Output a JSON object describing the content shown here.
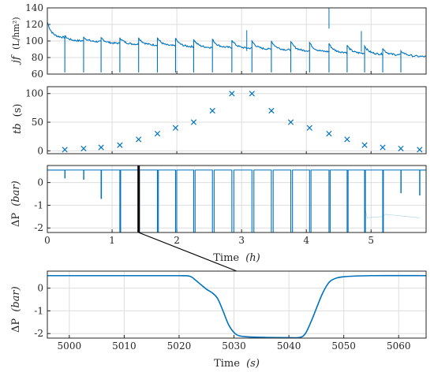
{
  "colors": {
    "series": "#0072bd",
    "axis": "#262626",
    "grid": "#dddddd",
    "zoom_line": "#000000"
  },
  "chart_data": [
    {
      "type": "line",
      "ylabel": "j_f (L/hm²)",
      "ylabel_text": "jf",
      "ylabel_unit": "(L/hm²)",
      "xlim": [
        0,
        5.85
      ],
      "ylim": [
        60,
        140
      ],
      "xticks": [
        0,
        1,
        2,
        3,
        4,
        5
      ],
      "yticks": [
        60,
        80,
        100,
        120,
        140
      ],
      "ytick_labels": [
        "60",
        "80",
        "100",
        "120",
        "140"
      ],
      "grid": true,
      "series": [
        {
          "start": [
            0.0,
            123
          ],
          "segments": [
            {
              "x0": 0.0,
              "x1": 0.27,
              "y0": 123,
              "y1": 104
            },
            {
              "x0": 0.27,
              "x1": 0.56,
              "y0": 106,
              "y1": 100
            },
            {
              "x0": 0.56,
              "x1": 0.83,
              "y0": 105,
              "y1": 99
            },
            {
              "x0": 0.83,
              "x1": 1.12,
              "y0": 104,
              "y1": 97
            },
            {
              "x0": 1.12,
              "x1": 1.41,
              "y0": 104,
              "y1": 96
            },
            {
              "x0": 1.41,
              "x1": 1.7,
              "y0": 104,
              "y1": 95
            },
            {
              "x0": 1.7,
              "x1": 1.98,
              "y0": 104,
              "y1": 94
            },
            {
              "x0": 1.98,
              "x1": 2.26,
              "y0": 103,
              "y1": 93
            },
            {
              "x0": 2.26,
              "x1": 2.55,
              "y0": 102,
              "y1": 92
            },
            {
              "x0": 2.55,
              "x1": 2.85,
              "y0": 102,
              "y1": 92
            },
            {
              "x0": 2.85,
              "x1": 3.16,
              "y0": 101,
              "y1": 91
            },
            {
              "x0": 3.16,
              "x1": 3.46,
              "y0": 100,
              "y1": 90
            },
            {
              "x0": 3.46,
              "x1": 3.76,
              "y0": 100,
              "y1": 89
            },
            {
              "x0": 3.76,
              "x1": 4.05,
              "y0": 99,
              "y1": 88
            },
            {
              "x0": 4.05,
              "x1": 4.35,
              "y0": 98,
              "y1": 87
            },
            {
              "x0": 4.35,
              "x1": 4.63,
              "y0": 97,
              "y1": 86
            },
            {
              "x0": 4.63,
              "x1": 4.9,
              "y0": 95,
              "y1": 85
            },
            {
              "x0": 4.9,
              "x1": 5.18,
              "y0": 94,
              "y1": 84
            },
            {
              "x0": 5.18,
              "x1": 5.46,
              "y0": 91,
              "y1": 83
            },
            {
              "x0": 5.46,
              "x1": 5.85,
              "y0": 88,
              "y1": 81
            }
          ],
          "dips": [
            0.27,
            0.56,
            0.83,
            1.12,
            1.41,
            1.7,
            1.98,
            2.26,
            2.55,
            2.85,
            3.16,
            3.46,
            3.76,
            4.05,
            4.35,
            4.63,
            4.9,
            5.18,
            5.46
          ],
          "spikes": [
            [
              3.08,
              113
            ],
            [
              4.35,
              140
            ],
            [
              4.85,
              112
            ]
          ]
        }
      ]
    },
    {
      "type": "scatter",
      "marker": "x",
      "ylabel": "t_b (s)",
      "ylabel_text": "tb",
      "ylabel_unit": "(s)",
      "xlim": [
        0,
        5.85
      ],
      "ylim": [
        -5,
        112
      ],
      "xticks": [
        0,
        1,
        2,
        3,
        4,
        5
      ],
      "yticks": [
        0,
        50,
        100
      ],
      "ytick_labels": [
        "0",
        "50",
        "100"
      ],
      "grid": true,
      "x": [
        0.27,
        0.56,
        0.83,
        1.12,
        1.41,
        1.7,
        1.98,
        2.26,
        2.55,
        2.85,
        3.16,
        3.46,
        3.76,
        4.05,
        4.35,
        4.63,
        4.9,
        5.18,
        5.46,
        5.75
      ],
      "y": [
        2,
        4,
        6,
        10,
        20,
        30,
        40,
        50,
        70,
        100,
        100,
        70,
        50,
        40,
        30,
        20,
        10,
        6,
        4,
        2
      ]
    },
    {
      "type": "line",
      "ylabel": "ΔP (bar)",
      "ylabel_text": "ΔP",
      "ylabel_unit": "(bar)",
      "xlabel": "Time (h)",
      "xlabel_text": "Time",
      "xlabel_unit": "(h)",
      "xlim": [
        0,
        5.85
      ],
      "ylim": [
        -2.2,
        0.75
      ],
      "xticks": [
        0,
        1,
        2,
        3,
        4,
        5
      ],
      "xtick_labels": [
        "0",
        "1",
        "2",
        "3",
        "4",
        "5"
      ],
      "yticks": [
        -2,
        -1,
        0
      ],
      "ytick_labels": [
        "-2",
        "-1",
        "0"
      ],
      "grid": true,
      "baseline": 0.55,
      "series": [
        {
          "pulses": [
            {
              "x": 0.27,
              "min": 0.2,
              "w": 0.004
            },
            {
              "x": 0.56,
              "min": 0.15,
              "w": 0.004
            },
            {
              "x": 0.83,
              "min": -0.7,
              "w": 0.006
            },
            {
              "x": 1.12,
              "min": -2.2,
              "w": 0.012
            },
            {
              "x": 1.41,
              "min": -2.2,
              "w": 0.012
            },
            {
              "x": 1.7,
              "min": -2.2,
              "w": 0.015
            },
            {
              "x": 1.98,
              "min": -2.2,
              "w": 0.018
            },
            {
              "x": 2.26,
              "min": -2.2,
              "w": 0.022
            },
            {
              "x": 2.55,
              "min": -2.2,
              "w": 0.026
            },
            {
              "x": 2.85,
              "min": -2.2,
              "w": 0.03
            },
            {
              "x": 3.16,
              "min": -2.2,
              "w": 0.03
            },
            {
              "x": 3.46,
              "min": -2.2,
              "w": 0.028
            },
            {
              "x": 3.76,
              "min": -2.2,
              "w": 0.026
            },
            {
              "x": 4.05,
              "min": -2.2,
              "w": 0.022
            },
            {
              "x": 4.35,
              "min": -2.2,
              "w": 0.018
            },
            {
              "x": 4.63,
              "min": -2.2,
              "w": 0.015
            },
            {
              "x": 4.9,
              "min": -2.2,
              "w": 0.012
            },
            {
              "x": 5.18,
              "min": -2.2,
              "w": 0.01
            },
            {
              "x": 5.46,
              "min": -0.45,
              "w": 0.004
            },
            {
              "x": 5.75,
              "min": -0.55,
              "w": 0.004
            }
          ],
          "tail": [
            [
              4.9,
              -1.05
            ],
            [
              4.94,
              -1.55
            ],
            [
              5.18,
              -1.5
            ],
            [
              5.22,
              -1.4
            ],
            [
              5.75,
              -1.55
            ]
          ]
        }
      ],
      "highlight_x": 1.41
    },
    {
      "type": "line",
      "ylabel": "ΔP (bar)",
      "ylabel_text": "ΔP",
      "ylabel_unit": "(bar)",
      "xlabel": "Time (s)",
      "xlabel_text": "Time",
      "xlabel_unit": "(s)",
      "xlim": [
        4996,
        5065
      ],
      "ylim": [
        -2.2,
        0.75
      ],
      "xticks": [
        5000,
        5010,
        5020,
        5030,
        5040,
        5050,
        5060
      ],
      "xtick_labels": [
        "5000",
        "5010",
        "5020",
        "5030",
        "5040",
        "5050",
        "5060"
      ],
      "yticks": [
        -2,
        -1,
        0
      ],
      "ytick_labels": [
        "-2",
        "-1",
        "0"
      ],
      "grid": true,
      "series": [
        {
          "x": [
            4996,
            5010,
            5020,
            5022,
            5023,
            5024,
            5025,
            5026,
            5027,
            5028,
            5029,
            5030,
            5031,
            5033,
            5036,
            5040,
            5042,
            5043,
            5044,
            5045,
            5046,
            5047,
            5048,
            5050,
            5055,
            5065
          ],
          "y": [
            0.55,
            0.55,
            0.55,
            0.52,
            0.35,
            0.15,
            -0.05,
            -0.2,
            -0.45,
            -1.0,
            -1.6,
            -1.95,
            -2.1,
            -2.15,
            -2.17,
            -2.18,
            -2.17,
            -2.0,
            -1.5,
            -0.9,
            -0.3,
            0.15,
            0.38,
            0.5,
            0.55,
            0.55
          ]
        }
      ]
    }
  ]
}
